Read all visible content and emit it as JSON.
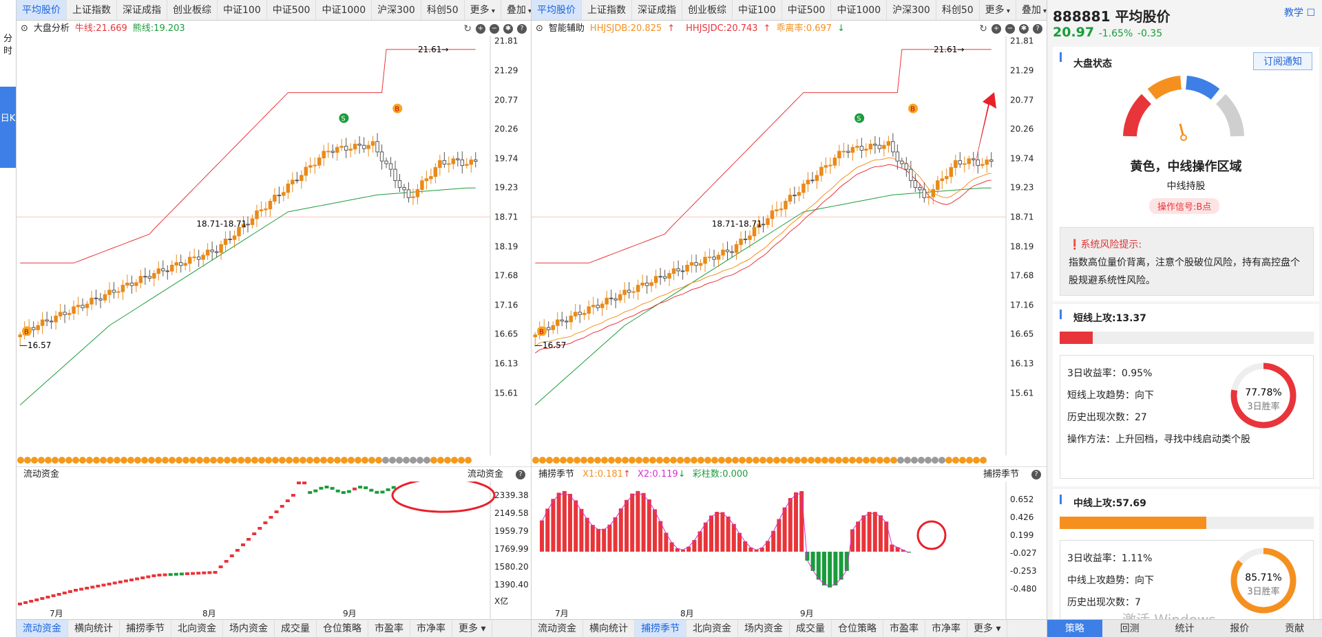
{
  "left_strip": {
    "fenshi": "分时",
    "rik": "日K"
  },
  "tabs": [
    "平均股价",
    "上证指数",
    "深证成指",
    "创业板综",
    "中证100",
    "中证500",
    "中证1000",
    "沪深300",
    "科创50",
    "更多",
    "叠加"
  ],
  "left_panel": {
    "info_title": "大盘分析",
    "bull_line": "牛线:21.669",
    "bear_line": "熊线:19.203",
    "y_ticks": [
      "21.81",
      "21.29",
      "20.77",
      "20.26",
      "19.74",
      "19.23",
      "18.71",
      "18.19",
      "17.68",
      "17.16",
      "16.65",
      "16.13",
      "15.61"
    ],
    "annot_high": "21.61",
    "annot_mid": "18.71-18.71",
    "annot_low": "16.57",
    "sub_title": "流动资金",
    "sub_title_right": "流动资金",
    "sub_ticks": [
      "2339.38",
      "2149.58",
      "1959.79",
      "1769.99",
      "1580.20",
      "1390.40"
    ],
    "sub_unit": "X亿",
    "months": [
      "7月",
      "8月",
      "9月"
    ],
    "bottom_tabs": [
      "流动资金",
      "横向统计",
      "捕捞季节",
      "北向资金",
      "场内资金",
      "成交量",
      "仓位策略",
      "市盈率",
      "市净率",
      "更多"
    ]
  },
  "mid_panel": {
    "info_title": "智能辅助",
    "hh_db": "HHJSJDB:20.825",
    "hh_dc": "HHJSJDC:20.743",
    "wind_rate": "乖离率:0.697",
    "y_ticks": [
      "21.81",
      "21.29",
      "20.77",
      "20.26",
      "19.74",
      "19.23",
      "18.71",
      "18.19",
      "17.68",
      "17.16",
      "16.65",
      "16.13",
      "15.61"
    ],
    "annot_high": "21.61",
    "annot_mid": "18.71-18.71",
    "annot_low": "16.57",
    "sub_title": "捕捞季节",
    "x1": "X1:0.181",
    "x2": "X2:0.119",
    "bars_count": "彩柱数:0.000",
    "sub_title_right": "捕捞季节",
    "sub_ticks": [
      "0.652",
      "0.426",
      "0.199",
      "-0.027",
      "-0.253",
      "-0.480"
    ],
    "months": [
      "7月",
      "8月",
      "9月"
    ],
    "bottom_tabs": [
      "流动资金",
      "横向统计",
      "捕捞季节",
      "北向资金",
      "场内资金",
      "成交量",
      "仓位策略",
      "市盈率",
      "市净率",
      "更多"
    ]
  },
  "right": {
    "code_name": "888881 平均股价",
    "teach": "教学",
    "price": "20.97",
    "change_pct": "-1.65%",
    "change": "-0.35",
    "market_state": "大盘状态",
    "subscribe": "订阅通知",
    "gauge_title": "黄色，中线操作区域",
    "gauge_sub": "中线持股",
    "signal": "操作信号:B点",
    "risk_title": "系统风险提示:",
    "risk_text": "指数高位量价背离，注意个股破位风险，持有高控盘个股规避系统性风险。",
    "short": {
      "title": "短线上攻:13.37",
      "progress": 0.13,
      "ret": "3日收益率：0.95%",
      "trend": "短线上攻趋势：向下",
      "count": "历史出现次数：27",
      "method": "操作方法：上升回档，寻找中线启动类个股",
      "win": "77.78%",
      "win_label": "3日胜率",
      "color": "#e8353a"
    },
    "mid": {
      "title": "中线上攻:57.69",
      "progress": 0.577,
      "ret": "3日收益率：1.11%",
      "trend": "中线上攻趋势：向下",
      "count": "历史出现次数：7",
      "win": "85.71%",
      "win_label": "3日胜率",
      "color": "#f5901e"
    },
    "bottom_tabs": [
      "策略",
      "回测",
      "统计",
      "报价",
      "贡献"
    ],
    "watermark": "激活 Windows"
  }
}
